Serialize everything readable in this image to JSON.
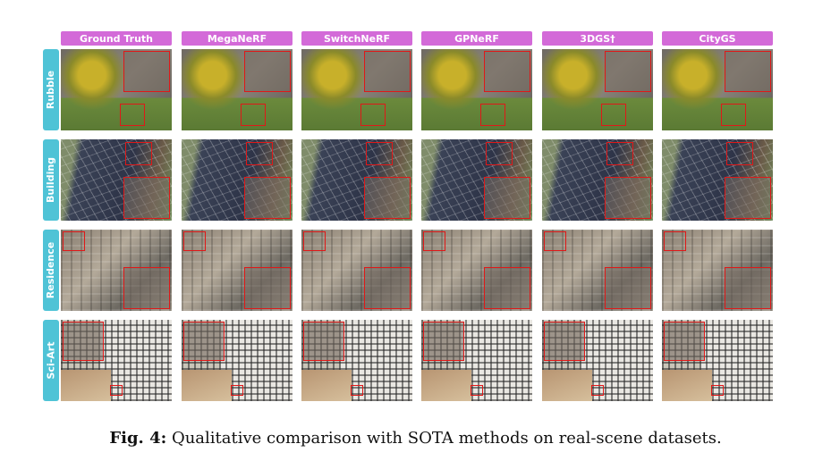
{
  "columns": [
    {
      "label": "Ground Truth"
    },
    {
      "label": "MegaNeRF"
    },
    {
      "label": "SwitchNeRF"
    },
    {
      "label": "GPNeRF"
    },
    {
      "label": "3DGS†"
    },
    {
      "label": "CityGS"
    }
  ],
  "rows": [
    {
      "label": "Rubble"
    },
    {
      "label": "Building"
    },
    {
      "label": "Residence"
    },
    {
      "label": "Sci-Art"
    }
  ],
  "caption": {
    "prefix": "Fig. 4:",
    "text": " Qualitative comparison with SOTA methods on real-scene datasets."
  }
}
